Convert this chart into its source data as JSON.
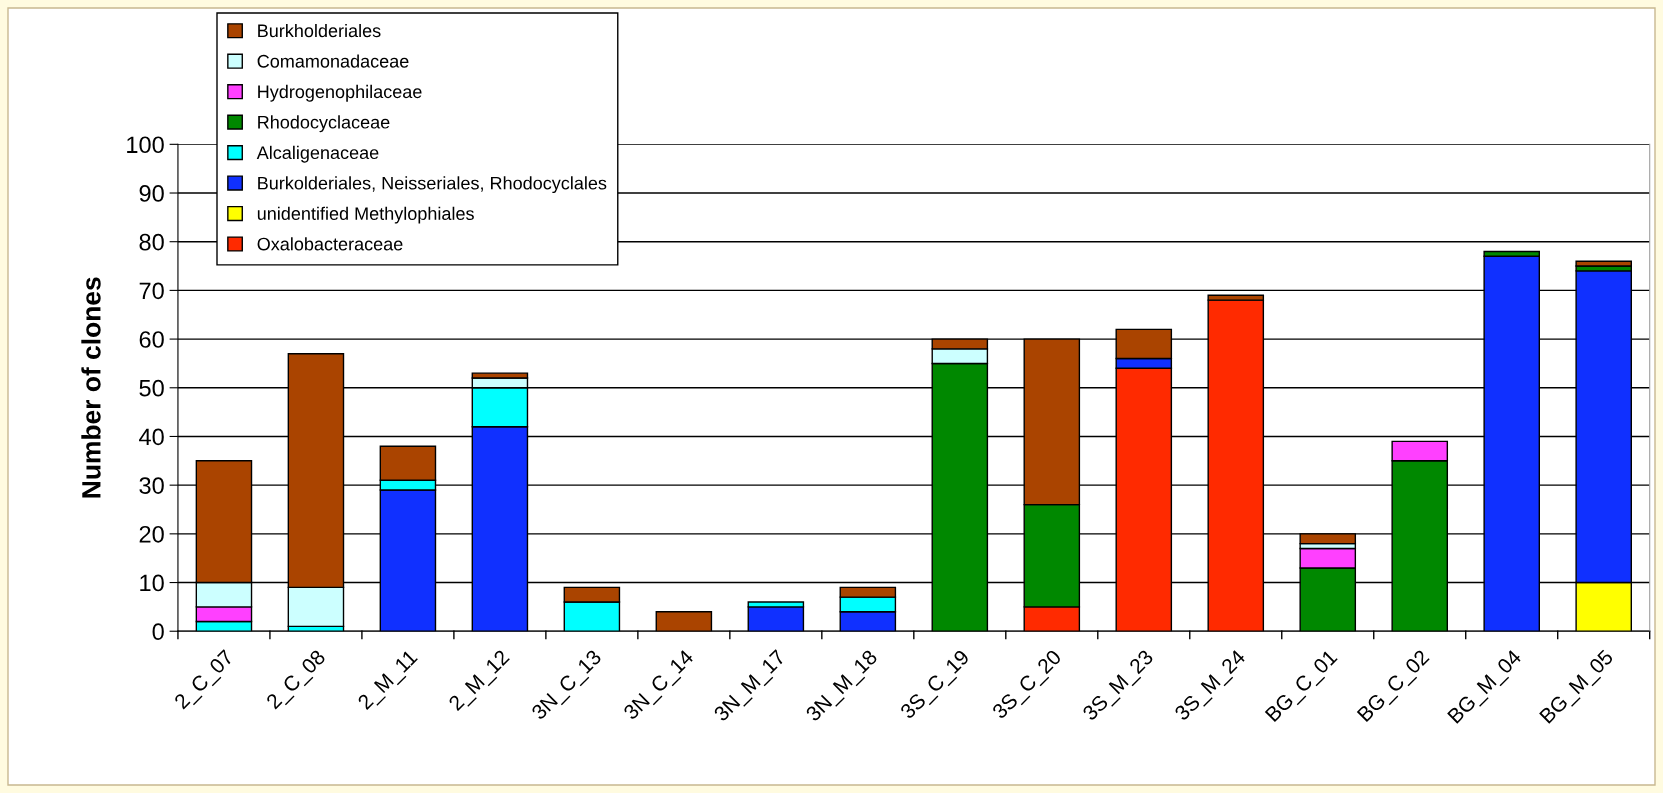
{
  "chart_data": {
    "type": "bar",
    "stacked": true,
    "ylabel": "Number of clones",
    "categories": [
      "2_C_07",
      "2_C_08",
      "2_M_11",
      "2_M_12",
      "3N_C_13",
      "3N_C_14",
      "3N_M_17",
      "3N_M_18",
      "3S_C_19",
      "3S_C_20",
      "3S_M_23",
      "3S_M_24",
      "BG_C_01",
      "BG_C_02",
      "BG_M_04",
      "BG_M_05"
    ],
    "series": [
      {
        "name": "Oxalobacteraceae",
        "color": "#ff2a00",
        "values": [
          null,
          null,
          null,
          null,
          null,
          null,
          null,
          null,
          null,
          5,
          54,
          68,
          null,
          null,
          null,
          null
        ]
      },
      {
        "name": "unidentified Methylophiales",
        "color": "#ffff00",
        "values": [
          null,
          null,
          null,
          null,
          null,
          null,
          null,
          null,
          null,
          null,
          null,
          null,
          null,
          null,
          null,
          10
        ]
      },
      {
        "name": "Burkolderiales, Neisseriales, Rhodocyclales",
        "color": "#1030ff",
        "values": [
          null,
          null,
          29,
          42,
          null,
          null,
          5,
          4,
          null,
          null,
          2,
          null,
          null,
          null,
          77,
          64
        ]
      },
      {
        "name": "Alcaligenaceae",
        "color": "#00ffff",
        "values": [
          2,
          1,
          2,
          8,
          6,
          null,
          1,
          3,
          null,
          null,
          null,
          null,
          null,
          null,
          null,
          null
        ]
      },
      {
        "name": "Rhodocyclaceae",
        "color": "#008800",
        "values": [
          null,
          null,
          null,
          null,
          null,
          null,
          null,
          null,
          55,
          21,
          null,
          null,
          13,
          35,
          1,
          1
        ]
      },
      {
        "name": "Hydrogenophilaceae",
        "color": "#ff40ff",
        "values": [
          3,
          null,
          null,
          null,
          null,
          null,
          null,
          null,
          null,
          null,
          null,
          null,
          4,
          4,
          null,
          null
        ]
      },
      {
        "name": "Comamonadaceae",
        "color": "#ccffff",
        "values": [
          5,
          8,
          null,
          2,
          null,
          null,
          null,
          null,
          3,
          null,
          null,
          null,
          1,
          null,
          null,
          null
        ]
      },
      {
        "name": "Burkholderiales",
        "color": "#aa4400",
        "values": [
          25,
          48,
          7,
          1,
          3,
          4,
          null,
          2,
          2,
          34,
          6,
          1,
          2,
          null,
          null,
          1
        ]
      }
    ],
    "ylim": [
      0,
      100
    ],
    "yticks": [
      0,
      10,
      20,
      30,
      40,
      50,
      60,
      70,
      80,
      90,
      100
    ],
    "grid": "y",
    "legend": "top left"
  }
}
